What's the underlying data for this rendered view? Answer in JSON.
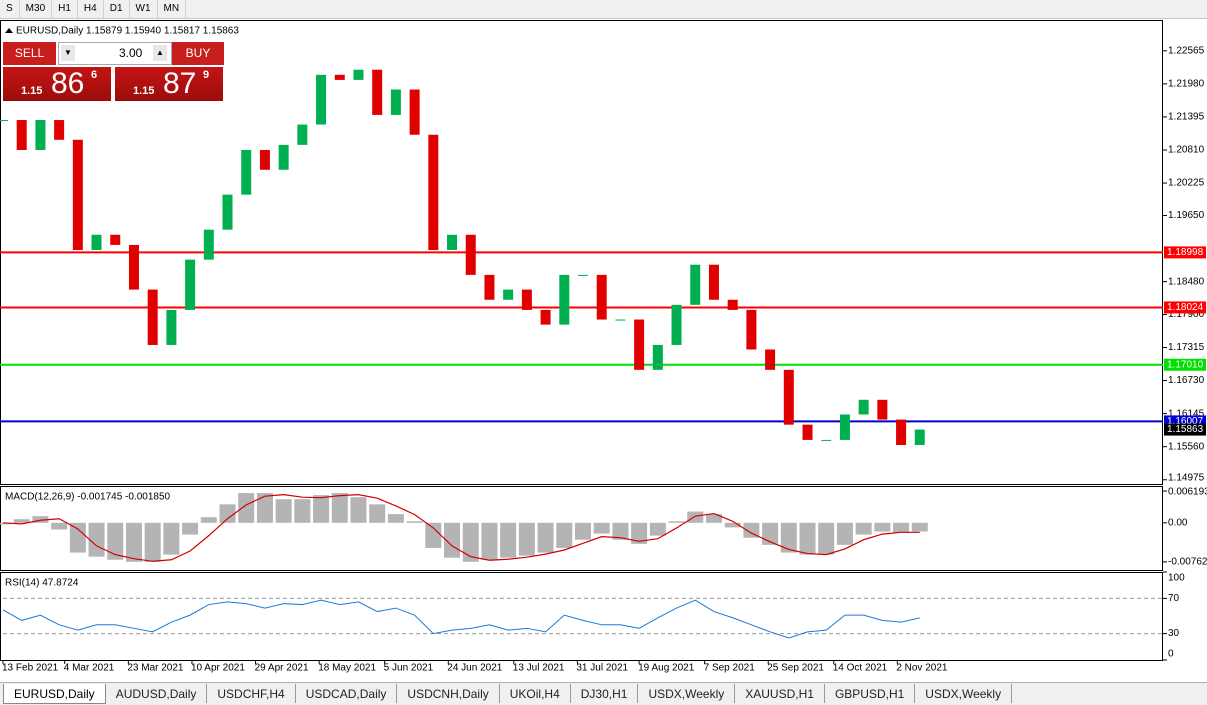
{
  "toolbar": {
    "buttons": [
      "S",
      "M30",
      "H1",
      "H4",
      "D1",
      "W1",
      "MN"
    ]
  },
  "trade_panel": {
    "sell": "SELL",
    "buy": "BUY",
    "lots": "3.00",
    "bid": {
      "prefix": "1.15",
      "big": "86",
      "small": "6"
    },
    "ask": {
      "prefix": "1.15",
      "big": "87",
      "small": "9"
    }
  },
  "chart_data": [
    {
      "type": "candlestick",
      "title": "EURUSD,Daily 1.15879 1.15940 1.15817 1.15863",
      "x": [
        0,
        1,
        2,
        3,
        4,
        5,
        6,
        7,
        8,
        9,
        10,
        11,
        12,
        13,
        14,
        15,
        16,
        17,
        18,
        19,
        20,
        21,
        22,
        23,
        24,
        25,
        26,
        27,
        28,
        29,
        30,
        31,
        32,
        33,
        34,
        35,
        36,
        37,
        38,
        39,
        40,
        41,
        42,
        43,
        44,
        45,
        46,
        47,
        48,
        49
      ],
      "values": [
        1.2134,
        1.2081,
        1.2134,
        1.2099,
        1.1904,
        1.1931,
        1.1913,
        1.1834,
        1.1736,
        1.1798,
        1.1887,
        1.194,
        1.2002,
        1.2081,
        1.2046,
        1.209,
        1.2126,
        1.2214,
        1.2205,
        1.2223,
        1.2143,
        1.2188,
        1.2108,
        1.1904,
        1.1931,
        1.186,
        1.1816,
        1.1834,
        1.1798,
        1.1772,
        1.186,
        1.186,
        1.1781,
        1.1781,
        1.1692,
        1.1736,
        1.1807,
        1.1878,
        1.1816,
        1.1798,
        1.1728,
        1.1692,
        1.1595,
        1.1568,
        1.1568,
        1.1613,
        1.1639,
        1.1604,
        1.1559,
        1.15863
      ],
      "up_color": "#00b050",
      "down_color": "#e00000",
      "xlim": [
        0,
        62
      ],
      "xticks": [
        {
          "value": 0,
          "label": "13 Feb 2021"
        },
        {
          "value": 3.3,
          "label": "4 Mar 2021"
        },
        {
          "value": 6.7,
          "label": "23 Mar 2021"
        },
        {
          "value": 10.1,
          "label": "10 Apr 2021"
        },
        {
          "value": 13.5,
          "label": "29 Apr 2021"
        },
        {
          "value": 16.9,
          "label": "18 May 2021"
        },
        {
          "value": 20.4,
          "label": "5 Jun 2021"
        },
        {
          "value": 23.8,
          "label": "24 Jun 2021"
        },
        {
          "value": 27.3,
          "label": "13 Jul 2021"
        },
        {
          "value": 30.7,
          "label": "31 Jul 2021"
        },
        {
          "value": 34,
          "label": "19 Aug 2021"
        },
        {
          "value": 37.5,
          "label": "7 Sep 2021"
        },
        {
          "value": 40.9,
          "label": "25 Sep 2021"
        },
        {
          "value": 44.4,
          "label": "14 Oct 2021"
        },
        {
          "value": 47.8,
          "label": "2 Nov 2021"
        }
      ],
      "ylim": [
        1.149,
        1.2311
      ],
      "yticks": [
        1.22565,
        {
          "value": 1.2198,
          "label": "1.21980"
        },
        1.21395,
        {
          "value": 1.2081,
          "label": "1.20810"
        },
        1.20225,
        {
          "value": 1.1965,
          "label": "1.19650"
        },
        {
          "value": 1.1848,
          "label": "1.18480"
        },
        {
          "value": 1.179,
          "label": "1.17900"
        },
        1.17315,
        {
          "value": 1.1673,
          "label": "1.16730"
        },
        1.16145,
        {
          "value": 1.1556,
          "label": "1.15560"
        },
        1.14975
      ],
      "levels": [
        {
          "value": 1.18998,
          "label": "1.18998",
          "color": "#ff0000"
        },
        {
          "value": 1.18024,
          "label": "1.18024",
          "color": "#ff0000"
        },
        {
          "value": 1.1701,
          "label": "1.17010",
          "color": "#00e000"
        },
        {
          "value": 1.16007,
          "label": "1.16007",
          "color": "#0000d0"
        }
      ],
      "last_price": 1.15863
    },
    {
      "type": "bar",
      "title": "MACD(12,26,9) -0.001745 -0.001850",
      "x": [
        0,
        1,
        2,
        3,
        4,
        5,
        6,
        7,
        8,
        9,
        10,
        11,
        12,
        13,
        14,
        15,
        16,
        17,
        18,
        19,
        20,
        21,
        22,
        23,
        24,
        25,
        26,
        27,
        28,
        29,
        30,
        31,
        32,
        33,
        34,
        35,
        36,
        37,
        38,
        39,
        40,
        41,
        42,
        43,
        44,
        45,
        46,
        47,
        48,
        49
      ],
      "values": [
        -0.0003,
        0.0007,
        0.0013,
        -0.0013,
        -0.0058,
        -0.0066,
        -0.0072,
        -0.0076,
        -0.0076,
        -0.0062,
        -0.0023,
        0.0011,
        0.0036,
        0.0058,
        0.0058,
        0.0046,
        0.0046,
        0.0054,
        0.0058,
        0.005,
        0.0036,
        0.0017,
        0.0003,
        -0.0049,
        -0.0068,
        -0.0076,
        -0.0072,
        -0.0068,
        -0.0064,
        -0.0058,
        -0.0049,
        -0.0033,
        -0.0021,
        -0.0033,
        -0.0041,
        -0.0025,
        0.0003,
        0.0022,
        0.0017,
        -0.0009,
        -0.0029,
        -0.0043,
        -0.0058,
        -0.0062,
        -0.0062,
        -0.0043,
        -0.0023,
        -0.0017,
        -0.0019,
        -0.0017
      ],
      "color": "#b4b4b4",
      "signal_values": [
        0,
        -0.0002,
        0.0005,
        0.0008,
        -0.0012,
        -0.0045,
        -0.0062,
        -0.007,
        -0.0075,
        -0.0072,
        -0.0055,
        -0.0025,
        0.0008,
        0.0035,
        0.0052,
        0.0055,
        0.005,
        0.0049,
        0.0053,
        0.0055,
        0.0048,
        0.0033,
        0.0016,
        -0.001,
        -0.0045,
        -0.0066,
        -0.0073,
        -0.0071,
        -0.0067,
        -0.0061,
        -0.0053,
        -0.004,
        -0.0027,
        -0.0029,
        -0.0036,
        -0.0031,
        -0.001,
        0.0013,
        0.0018,
        0.0003,
        -0.002,
        -0.0037,
        -0.0052,
        -0.006,
        -0.0062,
        -0.0051,
        -0.0033,
        -0.0022,
        -0.00185,
        -0.00185
      ],
      "signal_color": "#d00000",
      "xlim": [
        0,
        62
      ],
      "ylim": [
        -0.0092,
        0.00718
      ],
      "yticks": [
        0.006193,
        {
          "value": 0,
          "label": "0.00"
        },
        -0.007621
      ]
    },
    {
      "type": "line",
      "title": "RSI(14) 47.8724",
      "x": [
        0,
        1,
        2,
        3,
        4,
        5,
        6,
        7,
        8,
        9,
        10,
        11,
        12,
        13,
        14,
        15,
        16,
        17,
        18,
        19,
        20,
        21,
        22,
        23,
        24,
        25,
        26,
        27,
        28,
        29,
        30,
        31,
        32,
        33,
        34,
        35,
        36,
        37,
        38,
        39,
        40,
        41,
        42,
        43,
        44,
        45,
        46,
        47,
        48,
        49
      ],
      "values": [
        57,
        45,
        51,
        40,
        34,
        40,
        40,
        36,
        32,
        43,
        51,
        63,
        66,
        64,
        59,
        64,
        63,
        68,
        63,
        66,
        55,
        59,
        51,
        30,
        34,
        36,
        40,
        34,
        36,
        32,
        51,
        45,
        40,
        40,
        36,
        48,
        59,
        68,
        55,
        48,
        40,
        32,
        25,
        32,
        34,
        51,
        51,
        45,
        43,
        47.9
      ],
      "color": "#1e78d7",
      "xlim": [
        0,
        62
      ],
      "ylim": [
        0,
        100
      ],
      "yticks": [
        100,
        70,
        30,
        0
      ],
      "grid": true
    }
  ],
  "tabs": [
    "EURUSD,Daily",
    "AUDUSD,Daily",
    "USDCHF,H4",
    "USDCAD,Daily",
    "USDCNH,Daily",
    "UKOil,H4",
    "DJ30,H1",
    "USDX,Weekly",
    "XAUUSD,H1",
    "GBPUSD,H1",
    "USDX,Weekly"
  ]
}
